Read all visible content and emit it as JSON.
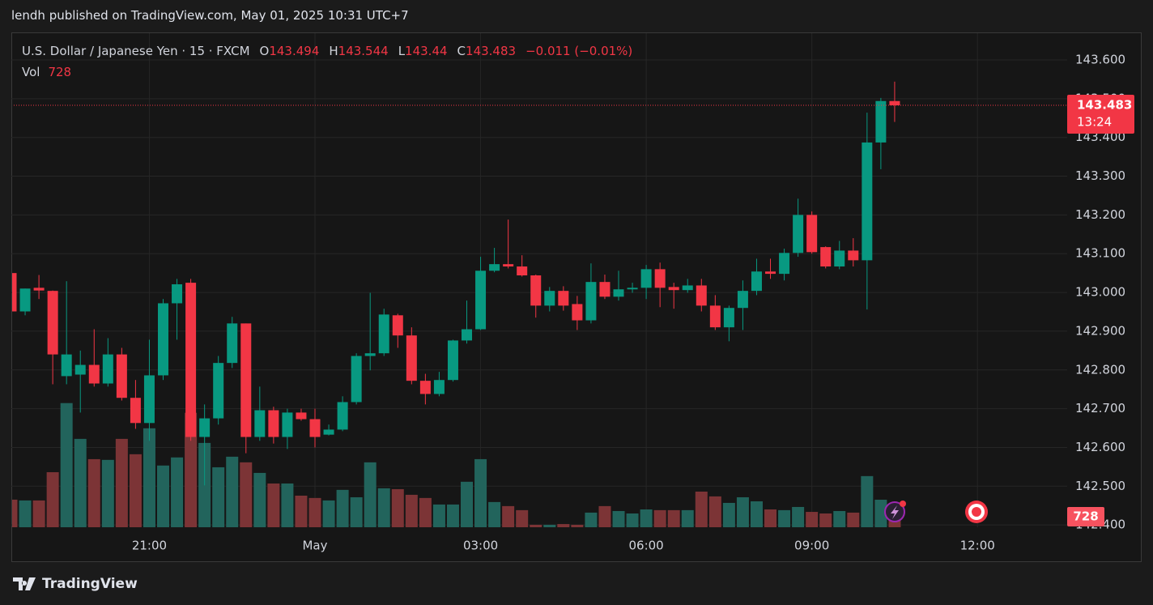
{
  "header": {
    "title": "lendh published on TradingView.com, May 01, 2025 10:31 UTC+7"
  },
  "chart_data": {
    "type": "candlestick",
    "symbol": "U.S. Dollar / Japanese Yen · 15 · FXCM",
    "ohlc_labels": {
      "open": "O",
      "high": "H",
      "low": "L",
      "close": "C"
    },
    "change_label": "−0.011 (−0.01%)",
    "volume_label": "Vol",
    "countdown": "13:24",
    "open": [
      143.05,
      142.951,
      143.012,
      143.004,
      142.784,
      142.788,
      142.813,
      142.765,
      142.84,
      142.728,
      142.663,
      142.786,
      142.972,
      143.025,
      142.627,
      142.675,
      142.818,
      142.92,
      142.627,
      142.696,
      142.627,
      142.69,
      142.673,
      142.633,
      142.646,
      142.717,
      142.836,
      142.843,
      142.941,
      142.889,
      142.772,
      142.738,
      142.774,
      142.876,
      142.905,
      143.056,
      143.073,
      143.067,
      143.044,
      142.966,
      143.004,
      142.97,
      142.928,
      143.027,
      142.989,
      143.008,
      143.012,
      143.06,
      143.014,
      143.006,
      143.018,
      142.966,
      142.91,
      142.96,
      143.004,
      143.054,
      143.048,
      143.102,
      143.2,
      143.117,
      143.067,
      143.108,
      143.083,
      143.387,
      143.494
    ],
    "high": [
      143.05,
      143.01,
      143.045,
      143.005,
      143.029,
      142.85,
      142.905,
      142.882,
      142.857,
      142.774,
      142.878,
      142.983,
      143.035,
      143.035,
      142.711,
      142.836,
      142.937,
      142.92,
      142.757,
      142.705,
      142.7,
      142.7,
      142.7,
      142.659,
      142.732,
      142.843,
      142.999,
      142.958,
      142.945,
      142.91,
      142.79,
      142.795,
      142.878,
      142.979,
      143.092,
      143.115,
      143.188,
      143.096,
      143.046,
      143.014,
      143.016,
      142.991,
      143.075,
      143.046,
      143.056,
      143.025,
      143.071,
      143.077,
      143.025,
      143.035,
      143.035,
      142.993,
      142.966,
      143.031,
      143.087,
      143.087,
      143.113,
      143.242,
      143.209,
      143.119,
      143.133,
      143.14,
      143.464,
      143.502,
      143.544
    ],
    "low": [
      142.951,
      142.941,
      142.983,
      142.763,
      142.763,
      142.69,
      142.757,
      142.757,
      142.721,
      142.648,
      142.617,
      142.774,
      142.878,
      142.617,
      142.502,
      142.659,
      142.805,
      142.585,
      142.617,
      142.61,
      142.596,
      142.669,
      142.6,
      142.631,
      142.642,
      142.711,
      142.799,
      142.836,
      142.857,
      142.763,
      142.711,
      142.732,
      142.77,
      142.868,
      142.903,
      143.052,
      143.062,
      143.041,
      142.935,
      142.951,
      142.953,
      142.903,
      142.92,
      142.983,
      142.979,
      142.999,
      142.983,
      142.962,
      142.958,
      142.999,
      142.951,
      142.903,
      142.874,
      142.903,
      142.993,
      143.035,
      143.031,
      143.092,
      143.1,
      143.062,
      143.06,
      143.067,
      142.956,
      143.318,
      143.44
    ],
    "close": [
      142.951,
      143.01,
      143.005,
      142.84,
      142.84,
      142.813,
      142.765,
      142.84,
      142.728,
      142.663,
      142.786,
      142.972,
      143.021,
      142.627,
      142.675,
      142.818,
      142.92,
      142.627,
      142.696,
      142.627,
      142.69,
      142.673,
      142.627,
      142.646,
      142.717,
      142.836,
      142.843,
      142.943,
      142.889,
      142.772,
      142.738,
      142.774,
      142.876,
      142.905,
      143.056,
      143.073,
      143.067,
      143.044,
      142.966,
      143.004,
      142.966,
      142.928,
      143.027,
      142.989,
      143.008,
      143.012,
      143.06,
      143.012,
      143.006,
      143.018,
      142.966,
      142.91,
      142.96,
      143.004,
      143.054,
      143.048,
      143.102,
      143.2,
      143.104,
      143.067,
      143.108,
      143.083,
      143.387,
      143.494,
      143.483
    ],
    "volume": [
      1904,
      1850,
      1850,
      3800,
      8570,
      6100,
      4700,
      4650,
      6100,
      5040,
      6830,
      4260,
      4820,
      7900,
      5820,
      4140,
      4870,
      4480,
      3750,
      3020,
      3020,
      2180,
      2020,
      1850,
      2580,
      2070,
      4480,
      2690,
      2630,
      2240,
      2020,
      1570,
      1570,
      3140,
      4700,
      1740,
      1460,
      1180,
      170,
      170,
      220,
      170,
      1010,
      1460,
      1120,
      950,
      1230,
      1180,
      1180,
      1180,
      2460,
      2130,
      1680,
      2070,
      1790,
      1230,
      1180,
      1400,
      1060,
      950,
      1120,
      1010,
      3530,
      1900,
      728
    ],
    "up_color": "#089981",
    "down_color": "#f23645",
    "volume_up_color": "#22645c",
    "volume_down_color": "#7c3436",
    "ylim": [
      142.394,
      143.669
    ],
    "yticks": [
      {
        "value": 142.4,
        "label": "142.400"
      },
      {
        "value": 142.5,
        "label": "142.500"
      },
      {
        "value": 142.6,
        "label": "142.600"
      },
      {
        "value": 142.7,
        "label": "142.700"
      },
      {
        "value": 142.8,
        "label": "142.800"
      },
      {
        "value": 142.9,
        "label": "142.900"
      },
      {
        "value": 143.0,
        "label": "143.000"
      },
      {
        "value": 143.1,
        "label": "143.100"
      },
      {
        "value": 143.2,
        "label": "143.200"
      },
      {
        "value": 143.3,
        "label": "143.300"
      },
      {
        "value": 143.4,
        "label": "143.400"
      },
      {
        "value": 143.5,
        "label": "143.500"
      },
      {
        "value": 143.6,
        "label": "143.600"
      }
    ],
    "xlim": [
      0,
      76.5
    ],
    "xticks": [
      {
        "value": 10,
        "label": "21:00"
      },
      {
        "value": 22,
        "label": "May"
      },
      {
        "value": 34,
        "label": "03:00"
      },
      {
        "value": 46,
        "label": "06:00"
      },
      {
        "value": 58,
        "label": "09:00"
      },
      {
        "value": 70,
        "label": "12:00"
      }
    ],
    "vlim": [
      0,
      34100
    ],
    "grid": true
  },
  "footer": {
    "brand": "TradingView"
  }
}
